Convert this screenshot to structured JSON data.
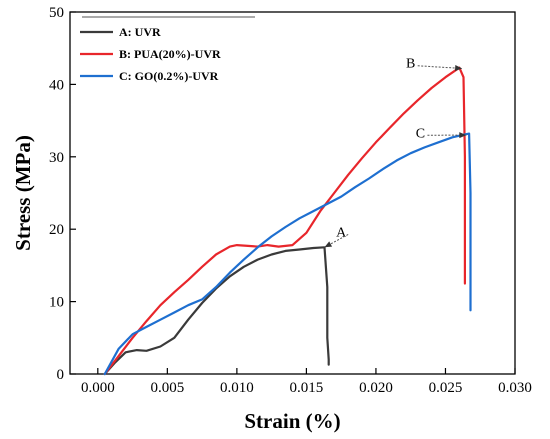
{
  "chart_data": {
    "type": "line",
    "title": "",
    "xlabel": "Strain (%)",
    "ylabel": "Stress (MPa)",
    "xlim": [
      -0.002,
      0.03
    ],
    "ylim": [
      0,
      50
    ],
    "xticks": [
      "0.000",
      "0.005",
      "0.010",
      "0.015",
      "0.020",
      "0.025",
      "0.030"
    ],
    "xtick_values": [
      0,
      0.005,
      0.01,
      0.015,
      0.02,
      0.025,
      0.03
    ],
    "yticks": [
      "0",
      "10",
      "20",
      "30",
      "40",
      "50"
    ],
    "ytick_values": [
      0,
      10,
      20,
      30,
      40,
      50
    ],
    "grid": false,
    "legend_position": "top-left",
    "series": [
      {
        "name": "A: UVR",
        "color": "#3a3a3a",
        "x": [
          0.0005,
          0.0012,
          0.002,
          0.0028,
          0.0035,
          0.0045,
          0.0055,
          0.0065,
          0.0075,
          0.0085,
          0.0095,
          0.0105,
          0.0115,
          0.0125,
          0.0135,
          0.0145,
          0.0155,
          0.0163,
          0.0165,
          0.0165,
          0.0166,
          0.0166
        ],
        "y": [
          0.0,
          1.5,
          3.0,
          3.3,
          3.2,
          3.8,
          5.0,
          7.5,
          9.8,
          11.8,
          13.5,
          14.8,
          15.8,
          16.5,
          17.0,
          17.2,
          17.4,
          17.5,
          12.0,
          5.0,
          2.0,
          1.3
        ]
      },
      {
        "name": "B: PUA(20%)-UVR",
        "color": "#e8262b",
        "x": [
          0.0005,
          0.0015,
          0.0025,
          0.0035,
          0.0045,
          0.0055,
          0.0065,
          0.0075,
          0.0085,
          0.0095,
          0.01,
          0.0108,
          0.0115,
          0.0122,
          0.013,
          0.014,
          0.015,
          0.016,
          0.017,
          0.018,
          0.019,
          0.02,
          0.021,
          0.022,
          0.023,
          0.024,
          0.025,
          0.026,
          0.0263,
          0.0264,
          0.0264,
          0.0264
        ],
        "y": [
          0.0,
          2.5,
          5.0,
          7.3,
          9.5,
          11.3,
          13.0,
          14.8,
          16.5,
          17.6,
          17.8,
          17.7,
          17.6,
          17.8,
          17.6,
          17.8,
          19.5,
          22.5,
          25.0,
          27.5,
          29.8,
          32.0,
          34.0,
          36.0,
          37.8,
          39.5,
          41.0,
          42.3,
          41.0,
          30.0,
          18.0,
          12.5
        ]
      },
      {
        "name": "C: GO(0.2%)-UVR",
        "color": "#1e6fd0",
        "x": [
          0.0005,
          0.0015,
          0.0025,
          0.0035,
          0.0045,
          0.0055,
          0.0065,
          0.0075,
          0.0085,
          0.0095,
          0.0105,
          0.0115,
          0.0125,
          0.0135,
          0.0145,
          0.0155,
          0.0165,
          0.0175,
          0.0185,
          0.0195,
          0.0205,
          0.0215,
          0.0225,
          0.0235,
          0.0245,
          0.0255,
          0.0262,
          0.0267,
          0.0268,
          0.0268,
          0.0268
        ],
        "y": [
          0.0,
          3.5,
          5.5,
          6.5,
          7.5,
          8.5,
          9.5,
          10.3,
          12.0,
          14.0,
          15.8,
          17.5,
          19.0,
          20.3,
          21.5,
          22.5,
          23.5,
          24.5,
          25.8,
          27.0,
          28.3,
          29.5,
          30.5,
          31.3,
          32.0,
          32.7,
          33.0,
          33.2,
          25.0,
          15.0,
          8.8
        ]
      }
    ],
    "annotations": [
      {
        "text": "A",
        "target": [
          0.0163,
          17.5
        ],
        "label_at": [
          0.0175,
          19.0
        ]
      },
      {
        "text": "B",
        "target": [
          0.0262,
          42.2
        ],
        "label_at": [
          0.0225,
          42.3
        ]
      },
      {
        "text": "C",
        "target": [
          0.0265,
          33.0
        ],
        "label_at": [
          0.0232,
          32.7
        ]
      }
    ]
  }
}
